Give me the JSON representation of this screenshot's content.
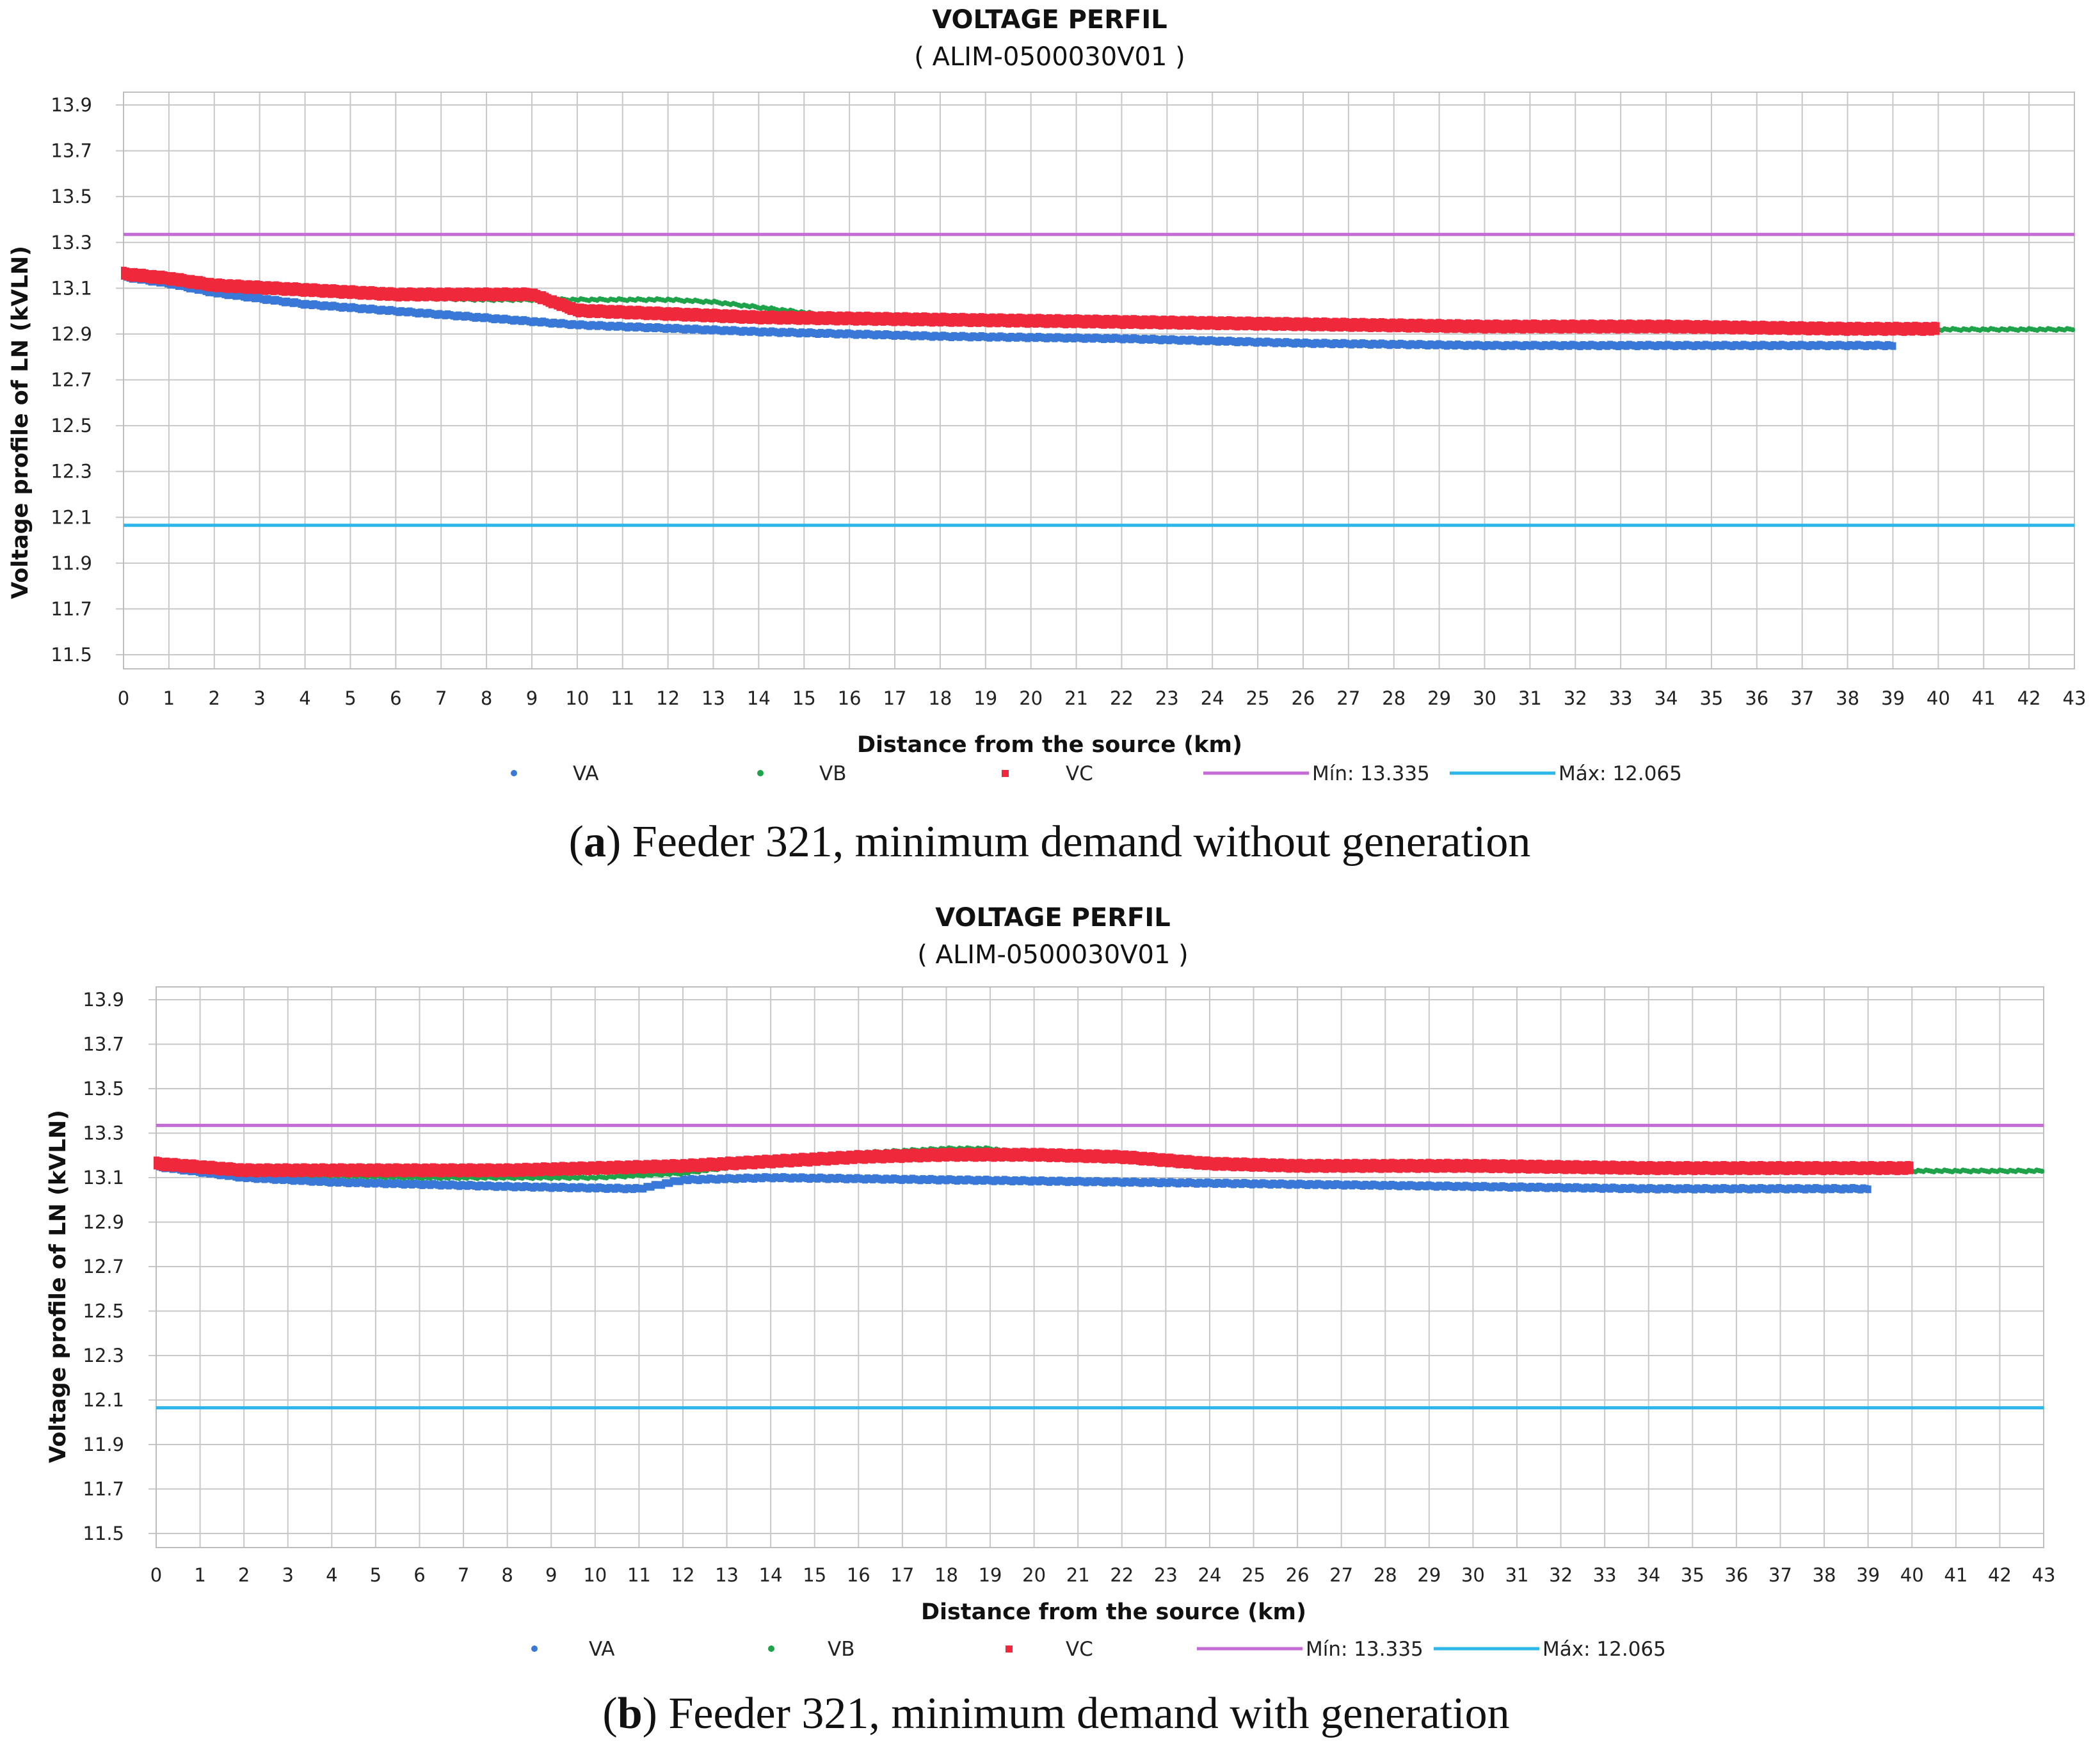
{
  "charts": [
    {
      "caption": {
        "letter": "a",
        "text": "Feeder 321, minimum demand without generation"
      },
      "chart_data": {
        "type": "scatter",
        "title": "VOLTAGE PERFIL",
        "subtitle": "( ALIM-0500030V01 )",
        "xlabel": "Distance from the source (km)",
        "ylabel": "Voltage profile of LN (kVLN)",
        "xlim": [
          0,
          43
        ],
        "ylim": [
          11.5,
          13.9
        ],
        "x_ticks": [
          "0",
          "1",
          "2",
          "3",
          "4",
          "5",
          "6",
          "7",
          "8",
          "9",
          "10",
          "11",
          "12",
          "13",
          "14",
          "15",
          "16",
          "17",
          "18",
          "19",
          "20",
          "21",
          "22",
          "23",
          "24",
          "25",
          "26",
          "27",
          "28",
          "29",
          "30",
          "31",
          "32",
          "33",
          "34",
          "35",
          "36",
          "37",
          "38",
          "39",
          "40",
          "41",
          "42",
          "43"
        ],
        "y_ticks": [
          "13.9",
          "13.7",
          "13.5",
          "13.3",
          "13.1",
          "12.9",
          "12.7",
          "12.5",
          "12.3",
          "12.1",
          "11.9",
          "11.7",
          "11.5"
        ],
        "series": [
          {
            "name": "VA",
            "color": "#3a78d8",
            "x": [
              0,
              1,
              2,
              4,
              6,
              8,
              10,
              14,
              18,
              22,
              26,
              30,
              34,
              39
            ],
            "y": [
              13.15,
              13.12,
              13.08,
              13.03,
              13.0,
              12.97,
              12.94,
              12.91,
              12.89,
              12.88,
              12.86,
              12.85,
              12.85,
              12.85
            ]
          },
          {
            "name": "VB",
            "color": "#1fa34a",
            "x": [
              0,
              2,
              4,
              6,
              8,
              9,
              10,
              11,
              12,
              13,
              16,
              20,
              25,
              30,
              35,
              40,
              42,
              43
            ],
            "y": [
              13.16,
              13.11,
              13.08,
              13.06,
              13.05,
              13.05,
              13.05,
              13.05,
              13.05,
              13.04,
              12.97,
              12.95,
              12.94,
              12.93,
              12.93,
              12.92,
              12.92,
              12.92
            ]
          },
          {
            "name": "VC",
            "color": "#f0283c",
            "x": [
              0,
              1,
              2,
              4,
              6,
              9,
              10,
              14,
              18,
              22,
              26,
              30,
              34,
              38,
              40
            ],
            "y": [
              13.16,
              13.14,
              13.11,
              13.09,
              13.07,
              13.07,
              13.0,
              12.97,
              12.96,
              12.95,
              12.94,
              12.93,
              12.93,
              12.92,
              12.92
            ]
          }
        ],
        "lines": [
          {
            "name": "Mín: 13.335",
            "value": 13.335,
            "color": "#c46bd6"
          },
          {
            "name": "Máx: 12.065",
            "value": 12.065,
            "color": "#2eb6ea"
          }
        ],
        "legend": [
          "VA",
          "VB",
          "VC",
          "Mín: 13.335",
          "Máx: 12.065"
        ]
      }
    },
    {
      "caption": {
        "letter": "b",
        "text": "Feeder 321, minimum demand with generation"
      },
      "chart_data": {
        "type": "scatter",
        "title": "VOLTAGE PERFIL",
        "subtitle": "( ALIM-0500030V01 )",
        "xlabel": "Distance from the source (km)",
        "ylabel": "Voltage profile of LN (kVLN)",
        "xlim": [
          0,
          43
        ],
        "ylim": [
          11.5,
          13.9
        ],
        "x_ticks": [
          "0",
          "1",
          "2",
          "3",
          "4",
          "5",
          "6",
          "7",
          "8",
          "9",
          "10",
          "11",
          "12",
          "13",
          "14",
          "15",
          "16",
          "17",
          "18",
          "19",
          "20",
          "21",
          "22",
          "23",
          "24",
          "25",
          "26",
          "27",
          "28",
          "29",
          "30",
          "31",
          "32",
          "33",
          "34",
          "35",
          "36",
          "37",
          "38",
          "39",
          "40",
          "41",
          "42",
          "43"
        ],
        "y_ticks": [
          "13.9",
          "13.7",
          "13.5",
          "13.3",
          "13.1",
          "12.9",
          "12.7",
          "12.5",
          "12.3",
          "12.1",
          "11.9",
          "11.7",
          "11.5"
        ],
        "series": [
          {
            "name": "VA",
            "color": "#3a78d8",
            "x": [
              0,
              2,
              4,
              6,
              8,
              11,
              12,
              14,
              18,
              22,
              26,
              30,
              34,
              39
            ],
            "y": [
              13.15,
              13.1,
              13.08,
              13.07,
              13.06,
              13.05,
              13.09,
              13.1,
              13.09,
              13.08,
              13.07,
              13.06,
              13.05,
              13.05
            ]
          },
          {
            "name": "VB",
            "color": "#1fa34a",
            "x": [
              0,
              2,
              4,
              6,
              8,
              10,
              12,
              14,
              16,
              18,
              19,
              20,
              22,
              26,
              30,
              35,
              40,
              42,
              43
            ],
            "y": [
              13.16,
              13.12,
              13.11,
              13.1,
              13.1,
              13.1,
              13.12,
              13.17,
              13.21,
              13.23,
              13.23,
              13.2,
              13.18,
              13.15,
              13.14,
              13.13,
              13.13,
              13.13,
              13.13
            ]
          },
          {
            "name": "VC",
            "color": "#f0283c",
            "x": [
              0,
              2,
              4,
              8,
              12,
              14,
              16,
              18,
              20,
              22,
              24,
              26,
              30,
              34,
              38,
              40
            ],
            "y": [
              13.16,
              13.13,
              13.13,
              13.13,
              13.15,
              13.17,
              13.19,
              13.2,
              13.2,
              13.19,
              13.16,
              13.15,
              13.15,
              13.14,
              13.14,
              13.14
            ]
          }
        ],
        "lines": [
          {
            "name": "Mín: 13.335",
            "value": 13.335,
            "color": "#c46bd6"
          },
          {
            "name": "Máx: 12.065",
            "value": 12.065,
            "color": "#2eb6ea"
          }
        ],
        "legend": [
          "VA",
          "VB",
          "VC",
          "Mín: 13.335",
          "Máx: 12.065"
        ]
      }
    }
  ]
}
